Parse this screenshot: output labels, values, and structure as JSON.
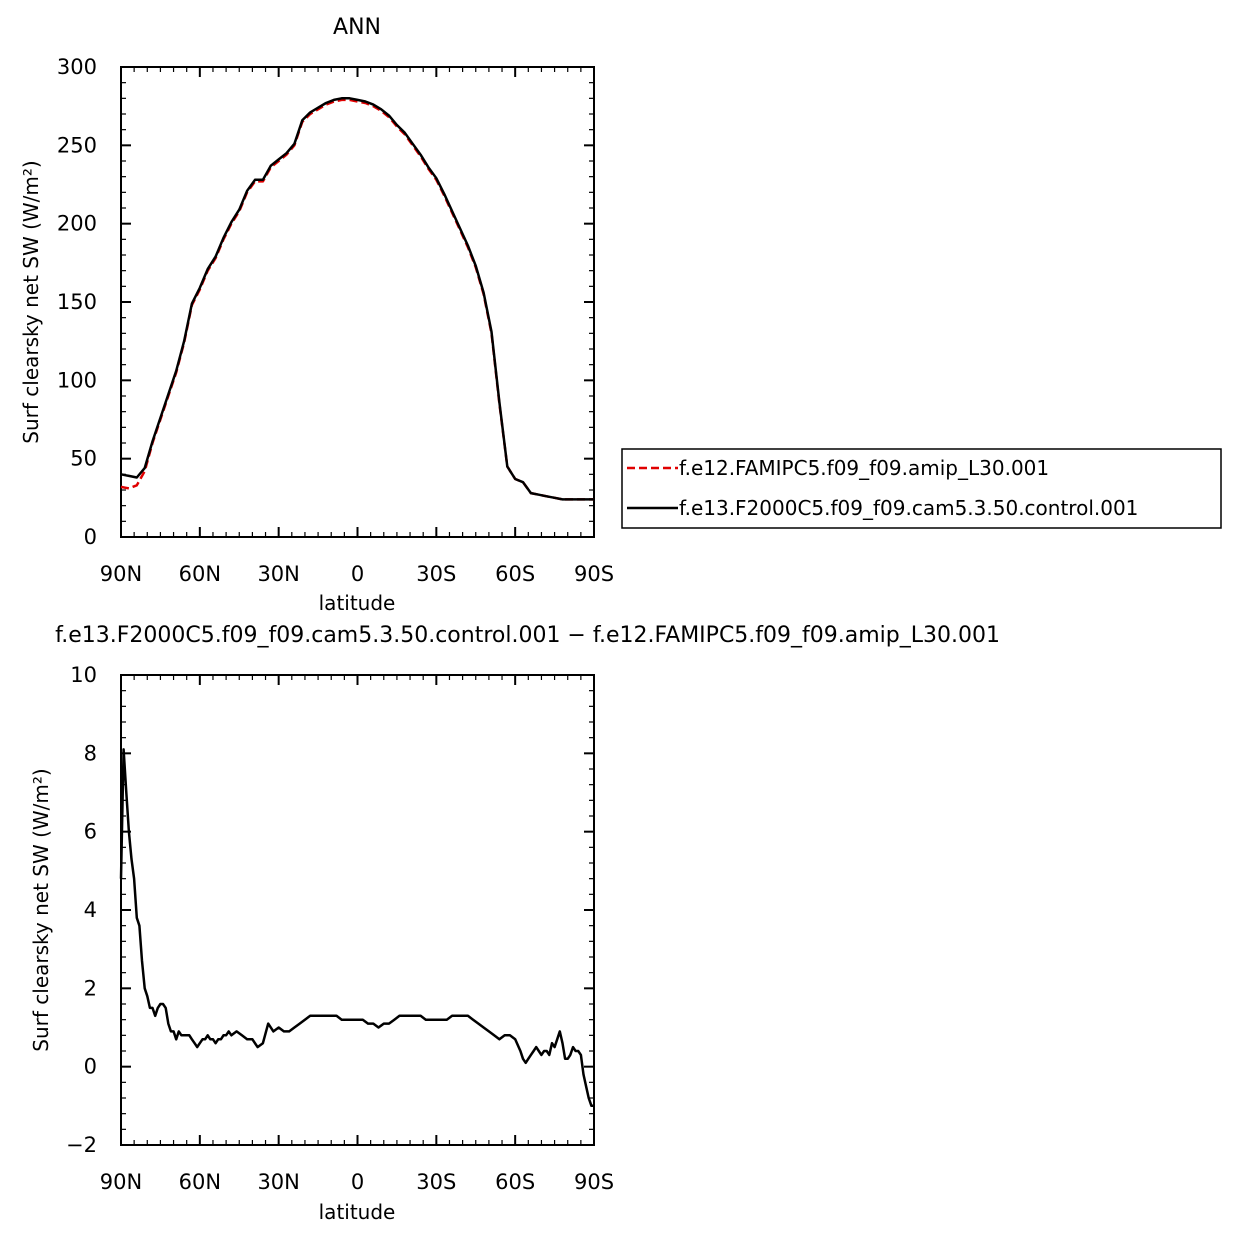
{
  "chart_data": [
    {
      "type": "line",
      "title": "ANN",
      "xlabel": "latitude",
      "ylabel": "Surf clearsky net SW (W/m²)",
      "xlim": [
        90,
        -90
      ],
      "ylim": [
        0,
        300
      ],
      "x_ticks": [
        {
          "value": 90,
          "label": "90N"
        },
        {
          "value": 60,
          "label": "60N"
        },
        {
          "value": 30,
          "label": "30N"
        },
        {
          "value": 0,
          "label": "0"
        },
        {
          "value": -30,
          "label": "30S"
        },
        {
          "value": -60,
          "label": "60S"
        },
        {
          "value": -90,
          "label": "90S"
        }
      ],
      "y_ticks": [
        {
          "value": 0,
          "label": "0"
        },
        {
          "value": 50,
          "label": "50"
        },
        {
          "value": 100,
          "label": "100"
        },
        {
          "value": 150,
          "label": "150"
        },
        {
          "value": 200,
          "label": "200"
        },
        {
          "value": 250,
          "label": "250"
        },
        {
          "value": 300,
          "label": "300"
        }
      ],
      "legend_position": "right",
      "series": [
        {
          "name": "f.e12.FAMIPC5.f09_f09.amip_L30.001",
          "color": "#e00000",
          "dash": "dashed",
          "x": [
            90,
            87,
            84,
            81,
            78,
            75,
            72,
            69,
            66,
            63,
            60,
            57,
            54,
            51,
            48,
            45,
            42,
            39,
            36,
            33,
            30,
            27,
            24,
            21,
            18,
            15,
            12,
            9,
            6,
            3,
            0,
            -3,
            -6,
            -9,
            -12,
            -15,
            -18,
            -21,
            -24,
            -27,
            -30,
            -33,
            -36,
            -39,
            -42,
            -45,
            -48,
            -51,
            -54,
            -57,
            -60,
            -63,
            -66,
            -69,
            -72,
            -75,
            -78,
            -81,
            -84,
            -87,
            -90
          ],
          "y": [
            32,
            31,
            33,
            42,
            60,
            75,
            90,
            105,
            124,
            148,
            158,
            170,
            178,
            190,
            200,
            208,
            220,
            227,
            227,
            236,
            240,
            244,
            250,
            265,
            270,
            273,
            276,
            278,
            279,
            279,
            278,
            277,
            275,
            272,
            268,
            262,
            257,
            250,
            243,
            235,
            228,
            218,
            207,
            196,
            185,
            172,
            155,
            130,
            85,
            45,
            37,
            35,
            28,
            27,
            26,
            25,
            24,
            24,
            24,
            24,
            24
          ]
        },
        {
          "name": "f.e13.F2000C5.f09_f09.cam5.3.50.control.001",
          "color": "#000000",
          "dash": "solid",
          "x": [
            90,
            87,
            84,
            81,
            78,
            75,
            72,
            69,
            66,
            63,
            60,
            57,
            54,
            51,
            48,
            45,
            42,
            39,
            36,
            33,
            30,
            27,
            24,
            21,
            18,
            15,
            12,
            9,
            6,
            3,
            0,
            -3,
            -6,
            -9,
            -12,
            -15,
            -18,
            -21,
            -24,
            -27,
            -30,
            -33,
            -36,
            -39,
            -42,
            -45,
            -48,
            -51,
            -54,
            -57,
            -60,
            -63,
            -66,
            -69,
            -72,
            -75,
            -78,
            -81,
            -84,
            -87,
            -90
          ],
          "y": [
            40,
            39,
            38,
            44,
            61,
            76,
            91,
            106,
            125,
            149,
            159,
            171,
            179,
            191,
            201,
            209,
            221,
            228,
            228,
            237,
            241,
            245,
            251,
            266,
            271,
            274,
            277,
            279,
            280,
            280,
            279,
            278,
            276,
            273,
            269,
            263,
            258,
            251,
            244,
            236,
            229,
            219,
            208,
            197,
            186,
            173,
            156,
            131,
            86,
            45,
            37,
            35,
            28,
            27,
            26,
            25,
            24,
            24,
            24,
            24,
            24
          ]
        }
      ]
    },
    {
      "type": "line",
      "title": "f.e13.F2000C5.f09_f09.cam5.3.50.control.001 − f.e12.FAMIPC5.f09_f09.amip_L30.001",
      "xlabel": "latitude",
      "ylabel": "Surf clearsky net SW (W/m²)",
      "xlim": [
        90,
        -90
      ],
      "ylim": [
        -2,
        10
      ],
      "x_ticks": [
        {
          "value": 90,
          "label": "90N"
        },
        {
          "value": 60,
          "label": "60N"
        },
        {
          "value": 30,
          "label": "30N"
        },
        {
          "value": 0,
          "label": "0"
        },
        {
          "value": -30,
          "label": "30S"
        },
        {
          "value": -60,
          "label": "60S"
        },
        {
          "value": -90,
          "label": "90S"
        }
      ],
      "y_ticks": [
        {
          "value": -2,
          "label": "−2"
        },
        {
          "value": 0,
          "label": "0"
        },
        {
          "value": 2,
          "label": "2"
        },
        {
          "value": 4,
          "label": "4"
        },
        {
          "value": 6,
          "label": "6"
        },
        {
          "value": 8,
          "label": "8"
        },
        {
          "value": 10,
          "label": "10"
        }
      ],
      "series": [
        {
          "color": "#000000",
          "dash": "solid",
          "x": [
            90,
            89,
            88,
            87,
            86,
            85,
            84,
            83,
            82,
            81,
            80,
            79,
            78,
            77,
            76,
            75,
            74,
            73,
            72,
            71,
            70,
            69,
            68,
            67,
            66,
            65,
            64,
            63,
            62,
            61,
            60,
            59,
            58,
            57,
            56,
            55,
            54,
            53,
            52,
            51,
            50,
            49,
            48,
            46,
            44,
            42,
            40,
            38,
            36,
            34,
            32,
            30,
            28,
            26,
            24,
            22,
            20,
            18,
            16,
            14,
            12,
            10,
            8,
            6,
            4,
            2,
            0,
            -2,
            -4,
            -6,
            -8,
            -10,
            -12,
            -14,
            -16,
            -18,
            -20,
            -22,
            -24,
            -26,
            -28,
            -30,
            -32,
            -34,
            -36,
            -38,
            -40,
            -42,
            -44,
            -46,
            -48,
            -50,
            -52,
            -54,
            -56,
            -58,
            -60,
            -62,
            -63,
            -64,
            -65,
            -66,
            -67,
            -68,
            -69,
            -70,
            -71,
            -72,
            -73,
            -74,
            -75,
            -76,
            -77,
            -78,
            -79,
            -80,
            -81,
            -82,
            -83,
            -84,
            -85,
            -86,
            -87,
            -88,
            -89,
            -90
          ],
          "y": [
            4.8,
            8.1,
            7.0,
            6.0,
            5.3,
            4.8,
            3.8,
            3.6,
            2.7,
            2.0,
            1.8,
            1.5,
            1.5,
            1.3,
            1.5,
            1.6,
            1.6,
            1.5,
            1.1,
            0.9,
            0.9,
            0.7,
            0.9,
            0.8,
            0.8,
            0.8,
            0.8,
            0.7,
            0.6,
            0.5,
            0.6,
            0.7,
            0.7,
            0.8,
            0.7,
            0.7,
            0.6,
            0.7,
            0.7,
            0.8,
            0.8,
            0.9,
            0.8,
            0.9,
            0.8,
            0.7,
            0.7,
            0.5,
            0.6,
            1.1,
            0.9,
            1.0,
            0.9,
            0.9,
            1.0,
            1.1,
            1.2,
            1.3,
            1.3,
            1.3,
            1.3,
            1.3,
            1.3,
            1.2,
            1.2,
            1.2,
            1.2,
            1.2,
            1.1,
            1.1,
            1.0,
            1.1,
            1.1,
            1.2,
            1.3,
            1.3,
            1.3,
            1.3,
            1.3,
            1.2,
            1.2,
            1.2,
            1.2,
            1.2,
            1.3,
            1.3,
            1.3,
            1.3,
            1.2,
            1.1,
            1.0,
            0.9,
            0.8,
            0.7,
            0.8,
            0.8,
            0.7,
            0.4,
            0.2,
            0.1,
            0.2,
            0.3,
            0.4,
            0.5,
            0.4,
            0.3,
            0.4,
            0.4,
            0.3,
            0.6,
            0.5,
            0.7,
            0.9,
            0.6,
            0.2,
            0.2,
            0.3,
            0.5,
            0.4,
            0.4,
            0.3,
            -0.2,
            -0.5,
            -0.8,
            -1.0,
            -1.0
          ]
        }
      ]
    }
  ]
}
